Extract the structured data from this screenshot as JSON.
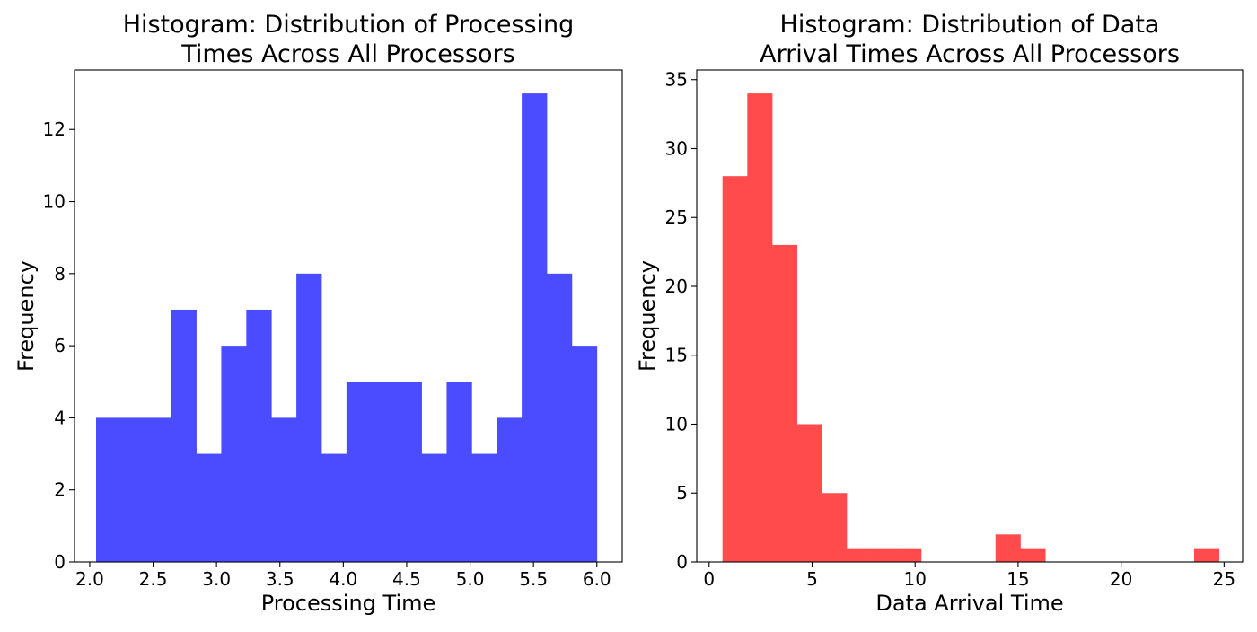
{
  "chart_data": [
    {
      "type": "bar",
      "histogram": true,
      "title": "Histogram: Distribution of Processing\nTimes Across All Processors",
      "xlabel": "Processing Time",
      "ylabel": "Frequency",
      "color": "#4b4bff",
      "xlim": [
        1.88,
        6.2
      ],
      "ylim": [
        0,
        13.65
      ],
      "xticks": [
        2.0,
        2.5,
        3.0,
        3.5,
        4.0,
        4.5,
        5.0,
        5.5,
        6.0
      ],
      "xtick_labels": [
        "2.0",
        "2.5",
        "3.0",
        "3.5",
        "4.0",
        "4.5",
        "5.0",
        "5.5",
        "6.0"
      ],
      "yticks": [
        0,
        2,
        4,
        6,
        8,
        10,
        12
      ],
      "ytick_labels": [
        "0",
        "2",
        "4",
        "6",
        "8",
        "10",
        "12"
      ],
      "bin_start": 2.05,
      "bin_width": 0.1975,
      "values": [
        4,
        4,
        4,
        7,
        3,
        6,
        7,
        4,
        8,
        3,
        5,
        5,
        5,
        3,
        5,
        3,
        4,
        13,
        8,
        6
      ]
    },
    {
      "type": "bar",
      "histogram": true,
      "title": "Histogram: Distribution of Data\nArrival Times Across All Processors",
      "xlabel": "Data Arrival Time",
      "ylabel": "Frequency",
      "color": "#ff4b4b",
      "xlim": [
        -0.6,
        25.9
      ],
      "ylim": [
        0,
        35.7
      ],
      "xticks": [
        0,
        5,
        10,
        15,
        20,
        25
      ],
      "xtick_labels": [
        "0",
        "5",
        "10",
        "15",
        "20",
        "25"
      ],
      "yticks": [
        0,
        5,
        10,
        15,
        20,
        25,
        30,
        35
      ],
      "ytick_labels": [
        "0",
        "5",
        "10",
        "15",
        "20",
        "25",
        "30",
        "35"
      ],
      "bin_start": 0.65,
      "bin_width": 1.205,
      "values": [
        28,
        34,
        23,
        10,
        5,
        1,
        1,
        1,
        0,
        0,
        0,
        2,
        1,
        0,
        0,
        0,
        0,
        0,
        0,
        1
      ]
    }
  ]
}
